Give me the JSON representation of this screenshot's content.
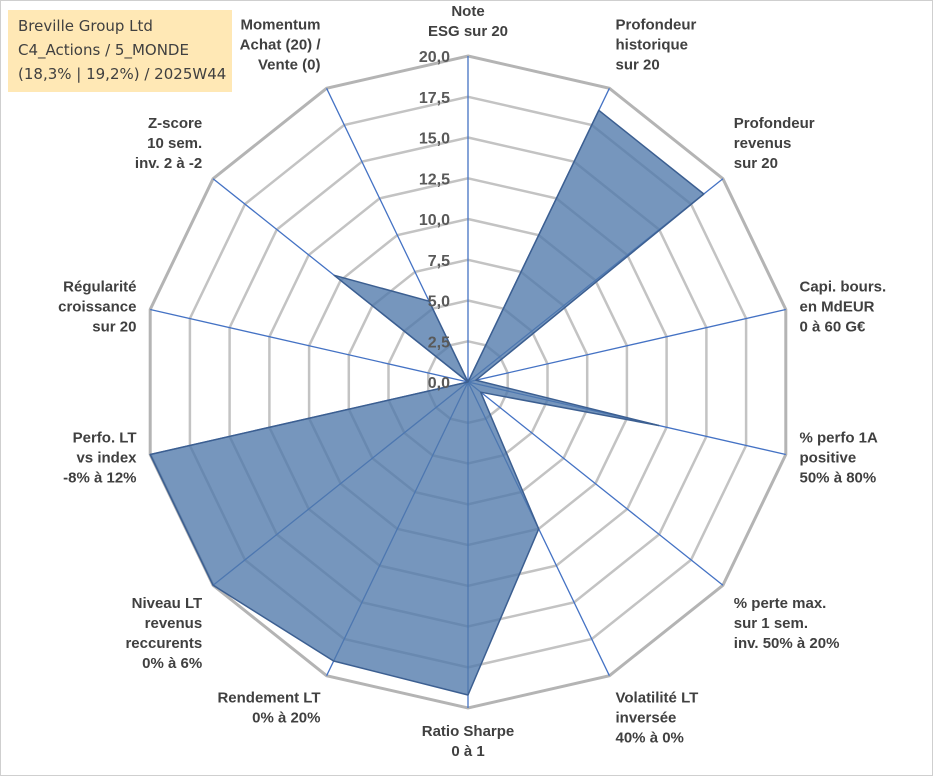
{
  "header": {
    "company": "Breville Group Ltd",
    "portfolio": "C4_Actions / 5_MONDE",
    "stats": "(18,3% | 19,2%) / 2025W44"
  },
  "chart_data": {
    "type": "radar",
    "title": "",
    "rmin": 0,
    "rmax": 20,
    "ticks": [
      "0,0",
      "2,5",
      "5,0",
      "7,5",
      "10,0",
      "12,5",
      "15,0",
      "17,5",
      "20,0"
    ],
    "grid": true,
    "axes": [
      {
        "label": [
          "Note",
          "ESG sur 20"
        ],
        "value": 0
      },
      {
        "label": [
          "Profondeur",
          "historique",
          "sur 20"
        ],
        "value": 18.5
      },
      {
        "label": [
          "Profondeur",
          "revenus",
          "sur 20"
        ],
        "value": 18.5
      },
      {
        "label": [
          "Capi. bours.",
          "en MdEUR",
          "0 à 60 G€"
        ],
        "value": 0.5
      },
      {
        "label": [
          "% perfo 1A",
          "positive",
          "50% à 80%"
        ],
        "value": 12
      },
      {
        "label": [
          "% perte max.",
          "sur 1 sem.",
          "inv. 50% à 20%"
        ],
        "value": 1
      },
      {
        "label": [
          "Volatilité LT",
          "inversée",
          "40% à 0%"
        ],
        "value": 10
      },
      {
        "label": [
          "Ratio Sharpe",
          "0 à 1"
        ],
        "value": 19.2
      },
      {
        "label": [
          "Rendement LT",
          "0% à 20%"
        ],
        "value": 19
      },
      {
        "label": [
          "Niveau LT",
          "revenus",
          "reccurents",
          "0% à 6%"
        ],
        "value": 20
      },
      {
        "label": [
          "Perfo. LT",
          "vs index",
          "-8% à 12%"
        ],
        "value": 20
      },
      {
        "label": [
          "Régularité",
          "croissance",
          "sur 20"
        ],
        "value": 0
      },
      {
        "label": [
          "Z-score",
          "10 sem.",
          "inv. 2 à -2"
        ],
        "value": 10.5
      },
      {
        "label": [
          "Momentum",
          "Achat (20) /",
          "Vente (0)"
        ],
        "value": 5.5
      }
    ],
    "series": [
      {
        "values": [
          0,
          18.5,
          18.5,
          0.5,
          12,
          1,
          10,
          19.2,
          19,
          20,
          20,
          0,
          10.5,
          5.5
        ]
      }
    ],
    "colors": {
      "fill": "#4f78aa",
      "outline": "#3c5f91",
      "axis": "#4472c4",
      "grid": "#c3c3c3",
      "frame": "#b4b4b4"
    }
  }
}
